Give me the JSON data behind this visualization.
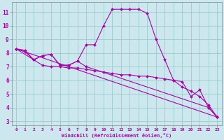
{
  "xlabel": "Windchill (Refroidissement éolien,°C)",
  "bg_color": "#cce8ee",
  "line_color": "#aa00aa",
  "grid_color": "#99cccc",
  "xlim": [
    -0.5,
    23.5
  ],
  "ylim": [
    2.7,
    11.7
  ],
  "yticks": [
    3,
    4,
    5,
    6,
    7,
    8,
    9,
    10,
    11
  ],
  "xticks": [
    0,
    1,
    2,
    3,
    4,
    5,
    6,
    7,
    8,
    9,
    10,
    11,
    12,
    13,
    14,
    15,
    16,
    17,
    18,
    19,
    20,
    21,
    22,
    23
  ],
  "lines": [
    {
      "x": [
        0,
        1,
        2,
        3,
        4,
        5,
        6,
        7,
        8,
        9,
        10,
        11,
        12,
        13,
        14,
        15,
        16,
        17,
        18,
        19,
        20,
        21,
        22,
        23
      ],
      "y": [
        8.3,
        8.2,
        7.5,
        7.8,
        7.9,
        7.1,
        7.1,
        7.4,
        8.6,
        8.6,
        10.0,
        11.2,
        11.2,
        11.2,
        11.2,
        10.9,
        9.0,
        7.5,
        6.0,
        5.9,
        4.8,
        5.3,
        4.0,
        3.3
      ],
      "marker": true
    },
    {
      "x": [
        0,
        1,
        2,
        3,
        4,
        5,
        6,
        7,
        8,
        9,
        10,
        11,
        12,
        13,
        14,
        15,
        16,
        17,
        18,
        19,
        20,
        21,
        22,
        23
      ],
      "y": [
        8.3,
        8.1,
        7.5,
        7.1,
        7.0,
        7.0,
        6.9,
        6.9,
        6.8,
        6.7,
        6.6,
        6.5,
        6.4,
        6.4,
        6.3,
        6.3,
        6.2,
        6.1,
        6.0,
        5.5,
        5.2,
        4.8,
        4.2,
        3.3
      ],
      "marker": true
    },
    {
      "x": [
        0,
        2,
        3,
        4,
        5,
        6,
        7,
        8,
        22,
        23
      ],
      "y": [
        8.3,
        7.5,
        7.8,
        7.9,
        7.1,
        7.1,
        7.4,
        7.0,
        4.0,
        3.3
      ],
      "marker": true
    },
    {
      "x": [
        0,
        23
      ],
      "y": [
        8.3,
        3.3
      ],
      "marker": true
    }
  ]
}
